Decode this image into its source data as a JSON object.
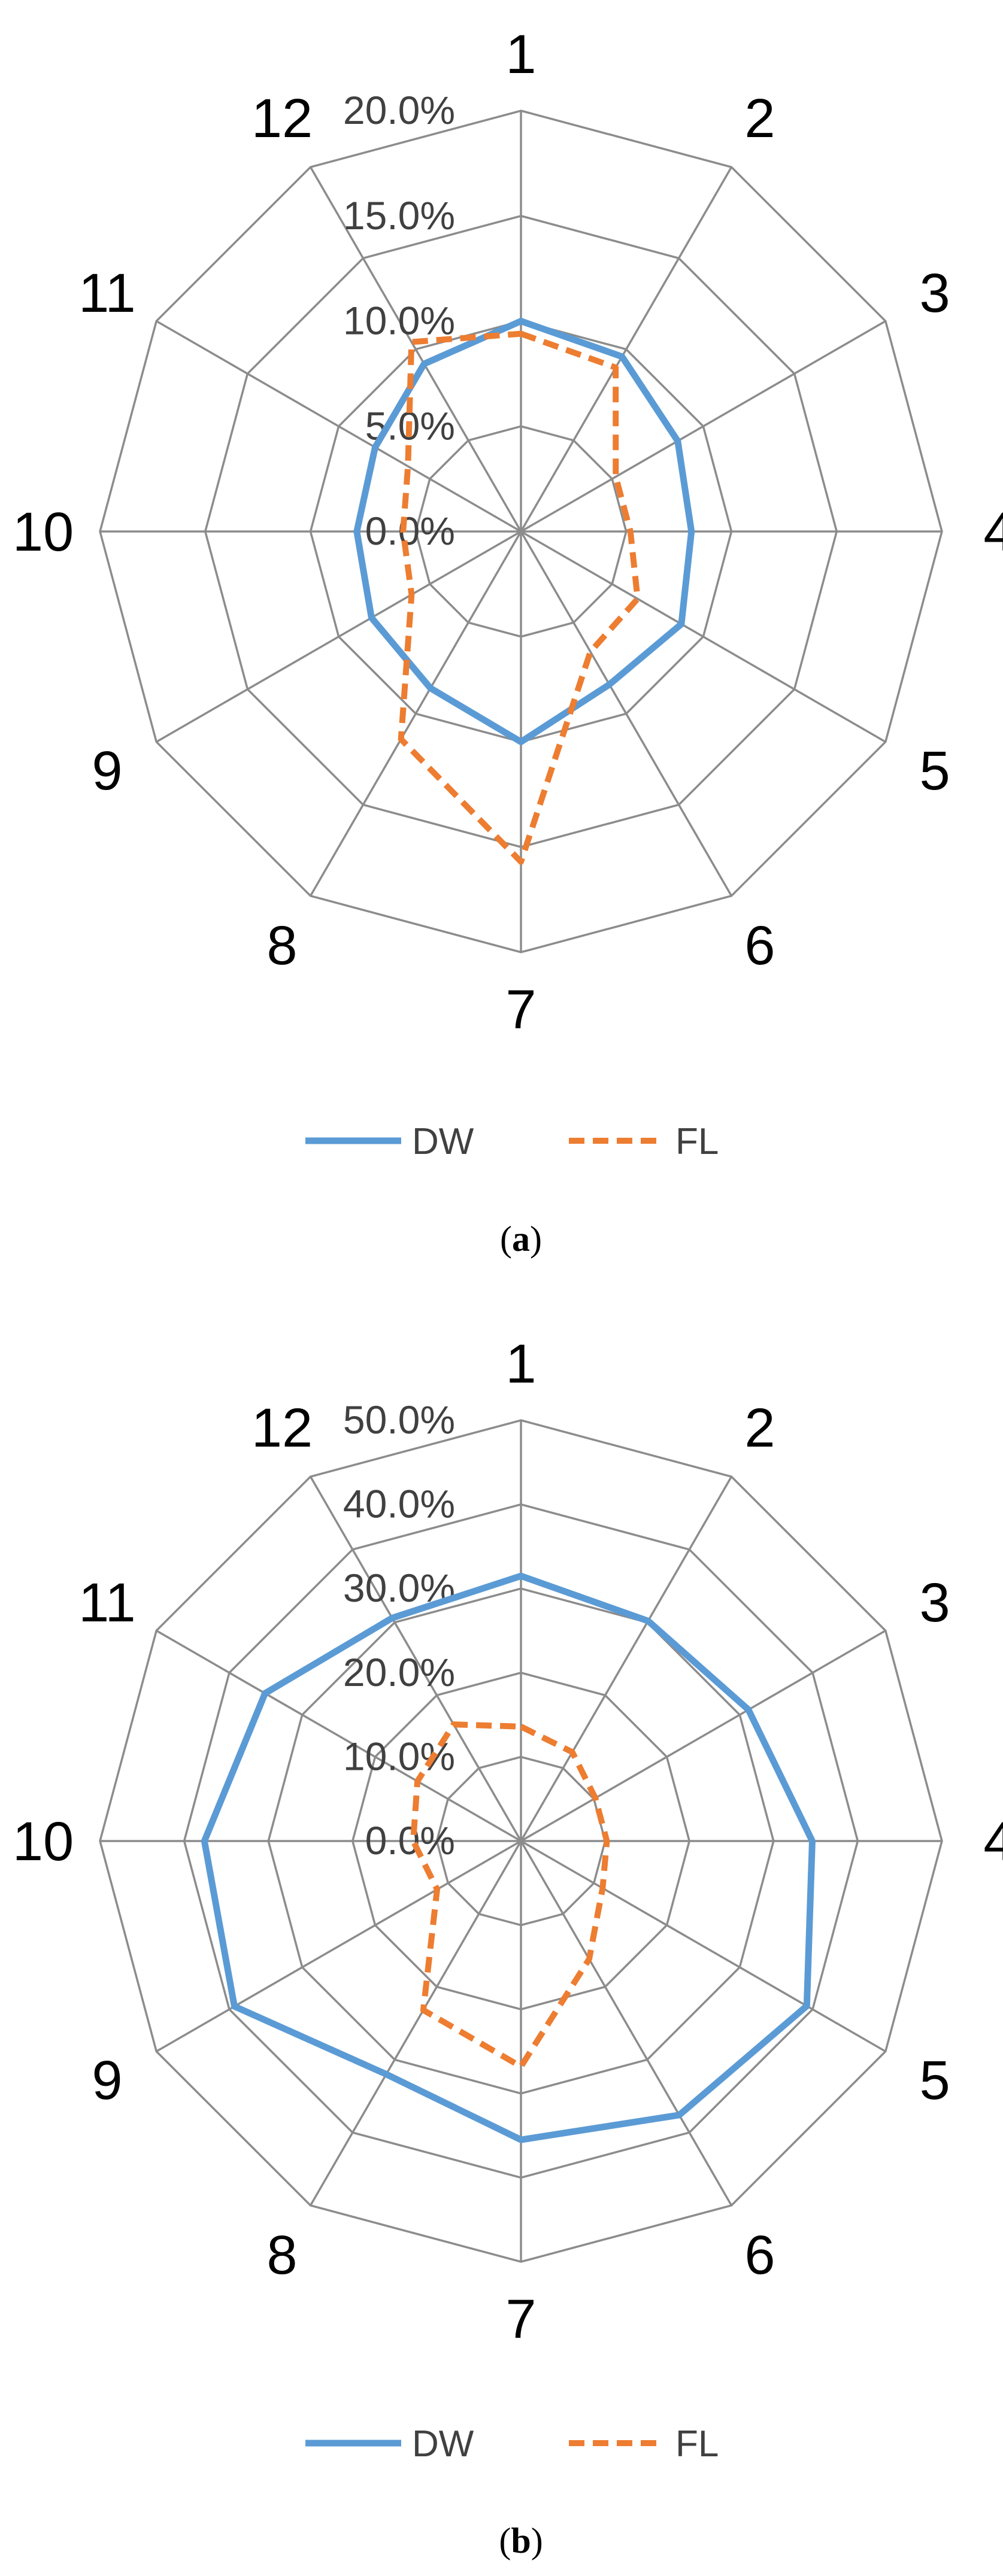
{
  "chart_data": [
    {
      "type": "radar",
      "panel_caption": "(a)",
      "categories": [
        "1",
        "2",
        "3",
        "4",
        "5",
        "6",
        "7",
        "8",
        "9",
        "10",
        "11",
        "12"
      ],
      "ticks": [
        "0.0%",
        "5.0%",
        "10.0%",
        "15.0%",
        "20.0%"
      ],
      "rmin": 0,
      "rmax": 20,
      "grid": true,
      "legend": "bottom",
      "series": [
        {
          "name": "DW",
          "color": "#5B9BD5",
          "dash": "solid",
          "values": [
            10.0,
            9.6,
            8.6,
            8.1,
            8.8,
            8.4,
            10.0,
            8.6,
            8.2,
            7.8,
            8.0,
            9.2
          ]
        },
        {
          "name": "FL",
          "color": "#ED7D31",
          "dash": "dashed",
          "values": [
            9.4,
            9.0,
            5.2,
            5.2,
            6.4,
            6.6,
            15.7,
            11.4,
            6.0,
            5.6,
            6.2,
            10.4
          ]
        }
      ]
    },
    {
      "type": "radar",
      "panel_caption": "(b)",
      "categories": [
        "1",
        "2",
        "3",
        "4",
        "5",
        "6",
        "7",
        "8",
        "9",
        "10",
        "11",
        "12"
      ],
      "ticks": [
        "0.0%",
        "10.0%",
        "20.0%",
        "30.0%",
        "40.0%",
        "50.0%"
      ],
      "rmin": 0,
      "rmax": 50,
      "grid": true,
      "legend": "bottom",
      "series": [
        {
          "name": "DW",
          "color": "#5B9BD5",
          "dash": "solid",
          "values": [
            31.5,
            30.2,
            31.2,
            34.6,
            39.2,
            37.6,
            35.5,
            32.0,
            39.3,
            37.6,
            35.1,
            30.6
          ]
        },
        {
          "name": "FL",
          "color": "#ED7D31",
          "dash": "dashed",
          "values": [
            13.6,
            12.2,
            10.2,
            10.2,
            11.2,
            16.2,
            26.8,
            23.2,
            11.5,
            12.8,
            14.2,
            16.0
          ]
        }
      ]
    }
  ]
}
